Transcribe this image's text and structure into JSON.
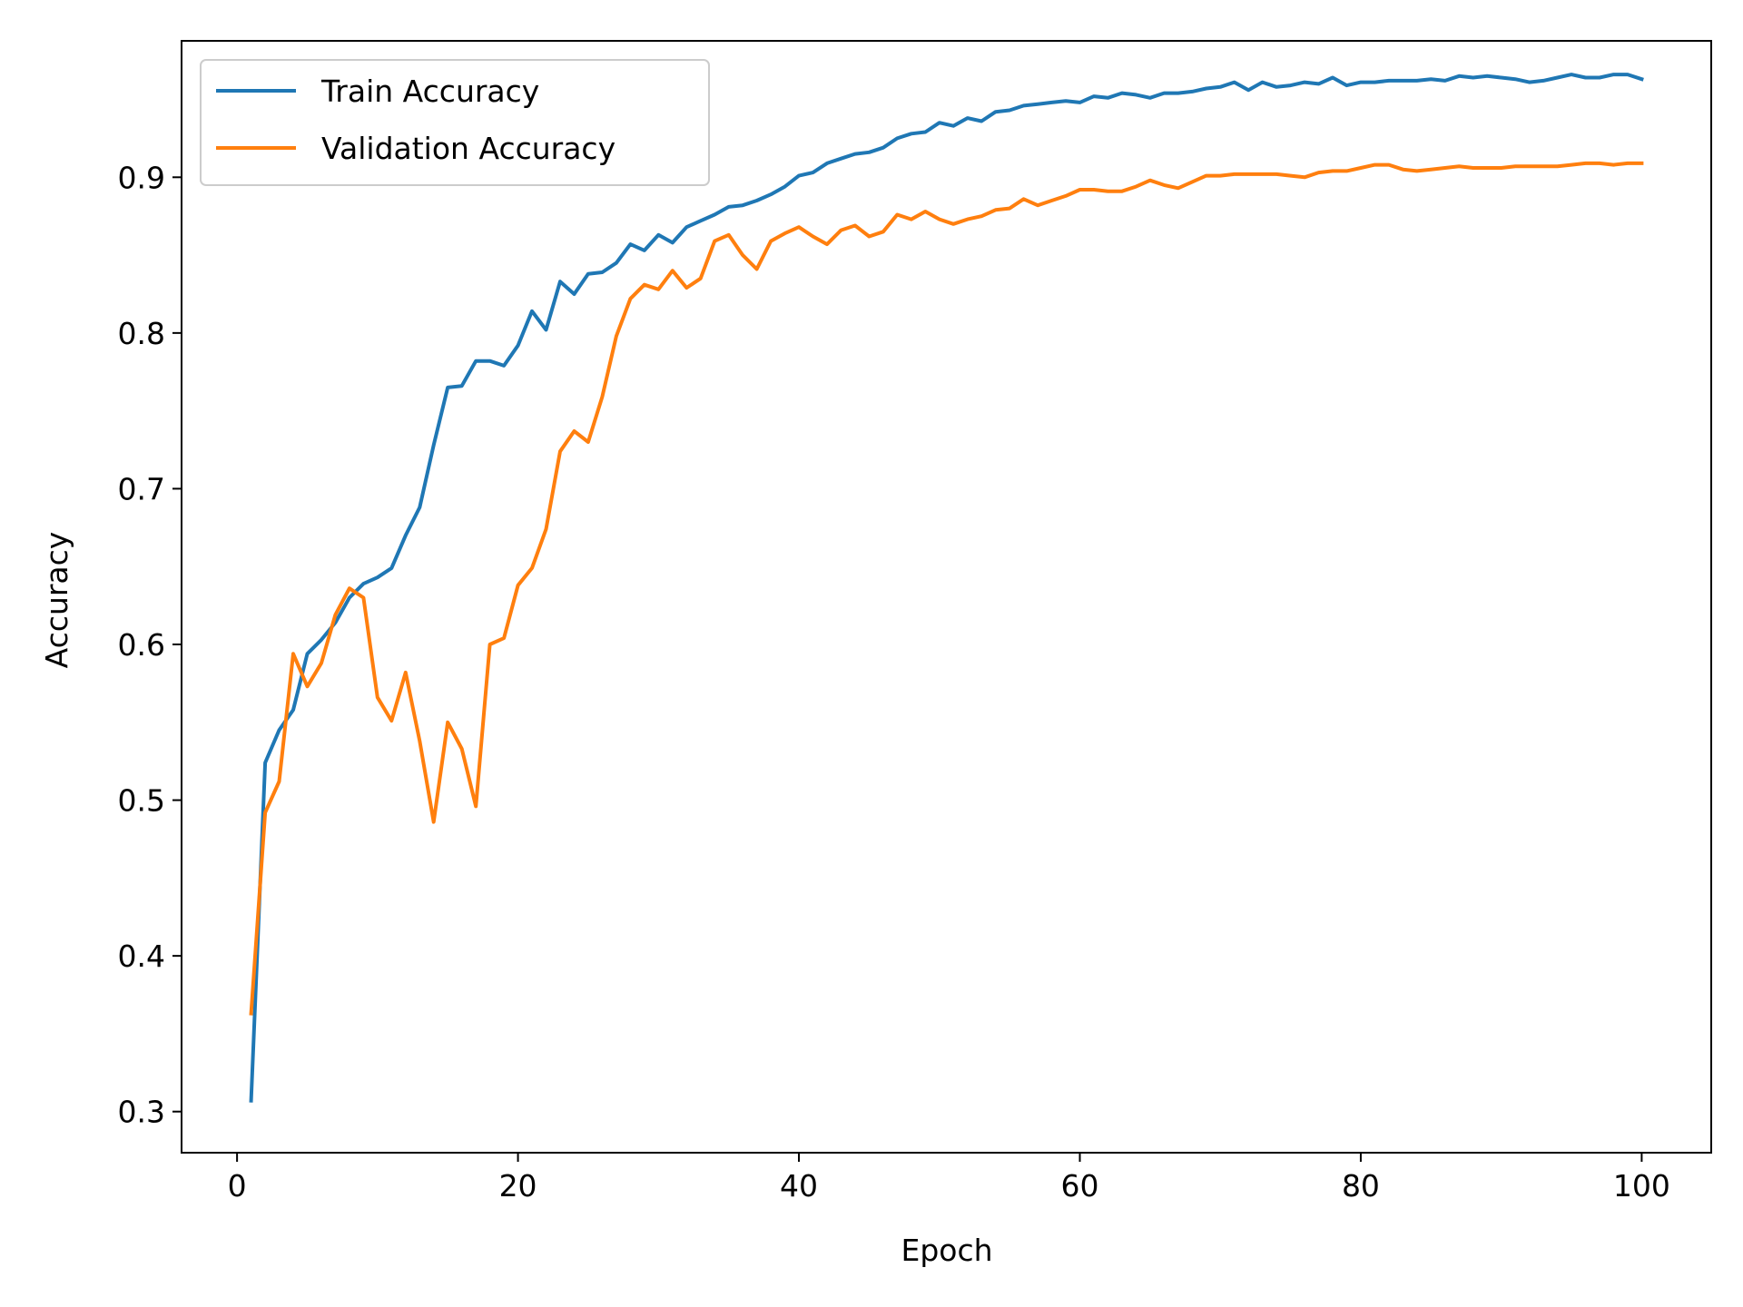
{
  "chart_data": {
    "type": "line",
    "title": "",
    "xlabel": "Epoch",
    "ylabel": "Accuracy",
    "xlim": [
      -3.95,
      104.95
    ],
    "ylim": [
      0.2736,
      0.9876
    ],
    "xticks": [
      0,
      20,
      40,
      60,
      80,
      100
    ],
    "yticks": [
      0.3,
      0.4,
      0.5,
      0.6,
      0.7,
      0.8,
      0.9
    ],
    "xtick_labels": [
      "0",
      "20",
      "40",
      "60",
      "80",
      "100"
    ],
    "ytick_labels": [
      "0.3",
      "0.4",
      "0.5",
      "0.6",
      "0.7",
      "0.8",
      "0.9"
    ],
    "grid": false,
    "legend_position": "upper left",
    "x": [
      1,
      2,
      3,
      4,
      5,
      6,
      7,
      8,
      9,
      10,
      11,
      12,
      13,
      14,
      15,
      16,
      17,
      18,
      19,
      20,
      21,
      22,
      23,
      24,
      25,
      26,
      27,
      28,
      29,
      30,
      31,
      32,
      33,
      34,
      35,
      36,
      37,
      38,
      39,
      40,
      41,
      42,
      43,
      44,
      45,
      46,
      47,
      48,
      49,
      50,
      51,
      52,
      53,
      54,
      55,
      56,
      57,
      58,
      59,
      60,
      61,
      62,
      63,
      64,
      65,
      66,
      67,
      68,
      69,
      70,
      71,
      72,
      73,
      74,
      75,
      76,
      77,
      78,
      79,
      80,
      81,
      82,
      83,
      84,
      85,
      86,
      87,
      88,
      89,
      90,
      91,
      92,
      93,
      94,
      95,
      96,
      97,
      98,
      99,
      100
    ],
    "series": [
      {
        "name": "Train Accuracy",
        "color": "#1f77b4",
        "values": [
          0.307,
          0.524,
          0.545,
          0.558,
          0.594,
          0.603,
          0.614,
          0.63,
          0.639,
          0.643,
          0.649,
          0.67,
          0.688,
          0.728,
          0.765,
          0.766,
          0.782,
          0.782,
          0.779,
          0.792,
          0.814,
          0.802,
          0.833,
          0.825,
          0.838,
          0.839,
          0.845,
          0.857,
          0.853,
          0.863,
          0.858,
          0.868,
          0.872,
          0.876,
          0.881,
          0.882,
          0.885,
          0.889,
          0.894,
          0.901,
          0.903,
          0.909,
          0.912,
          0.915,
          0.916,
          0.919,
          0.925,
          0.928,
          0.929,
          0.935,
          0.933,
          0.938,
          0.936,
          0.942,
          0.943,
          0.946,
          0.947,
          0.948,
          0.949,
          0.948,
          0.952,
          0.951,
          0.954,
          0.953,
          0.951,
          0.954,
          0.954,
          0.955,
          0.957,
          0.958,
          0.961,
          0.956,
          0.961,
          0.958,
          0.959,
          0.961,
          0.96,
          0.964,
          0.959,
          0.961,
          0.961,
          0.962,
          0.962,
          0.962,
          0.963,
          0.962,
          0.965,
          0.964,
          0.965,
          0.964,
          0.963,
          0.961,
          0.962,
          0.964,
          0.966,
          0.964,
          0.964,
          0.966,
          0.966,
          0.963
        ]
      },
      {
        "name": "Validation Accuracy",
        "color": "#ff7f0e",
        "values": [
          0.363,
          0.492,
          0.512,
          0.594,
          0.573,
          0.588,
          0.619,
          0.636,
          0.63,
          0.566,
          0.551,
          0.582,
          0.538,
          0.486,
          0.55,
          0.533,
          0.496,
          0.6,
          0.604,
          0.638,
          0.649,
          0.674,
          0.724,
          0.737,
          0.73,
          0.759,
          0.798,
          0.822,
          0.831,
          0.828,
          0.84,
          0.829,
          0.835,
          0.859,
          0.863,
          0.85,
          0.841,
          0.859,
          0.864,
          0.868,
          0.862,
          0.857,
          0.866,
          0.869,
          0.862,
          0.865,
          0.876,
          0.873,
          0.878,
          0.873,
          0.87,
          0.873,
          0.875,
          0.879,
          0.88,
          0.886,
          0.882,
          0.885,
          0.888,
          0.892,
          0.892,
          0.891,
          0.891,
          0.894,
          0.898,
          0.895,
          0.893,
          0.897,
          0.901,
          0.901,
          0.902,
          0.902,
          0.902,
          0.902,
          0.901,
          0.9,
          0.903,
          0.904,
          0.904,
          0.906,
          0.908,
          0.908,
          0.905,
          0.904,
          0.905,
          0.906,
          0.907,
          0.906,
          0.906,
          0.906,
          0.907,
          0.907,
          0.907,
          0.907,
          0.908,
          0.909,
          0.909,
          0.908,
          0.909,
          0.909
        ]
      }
    ]
  }
}
